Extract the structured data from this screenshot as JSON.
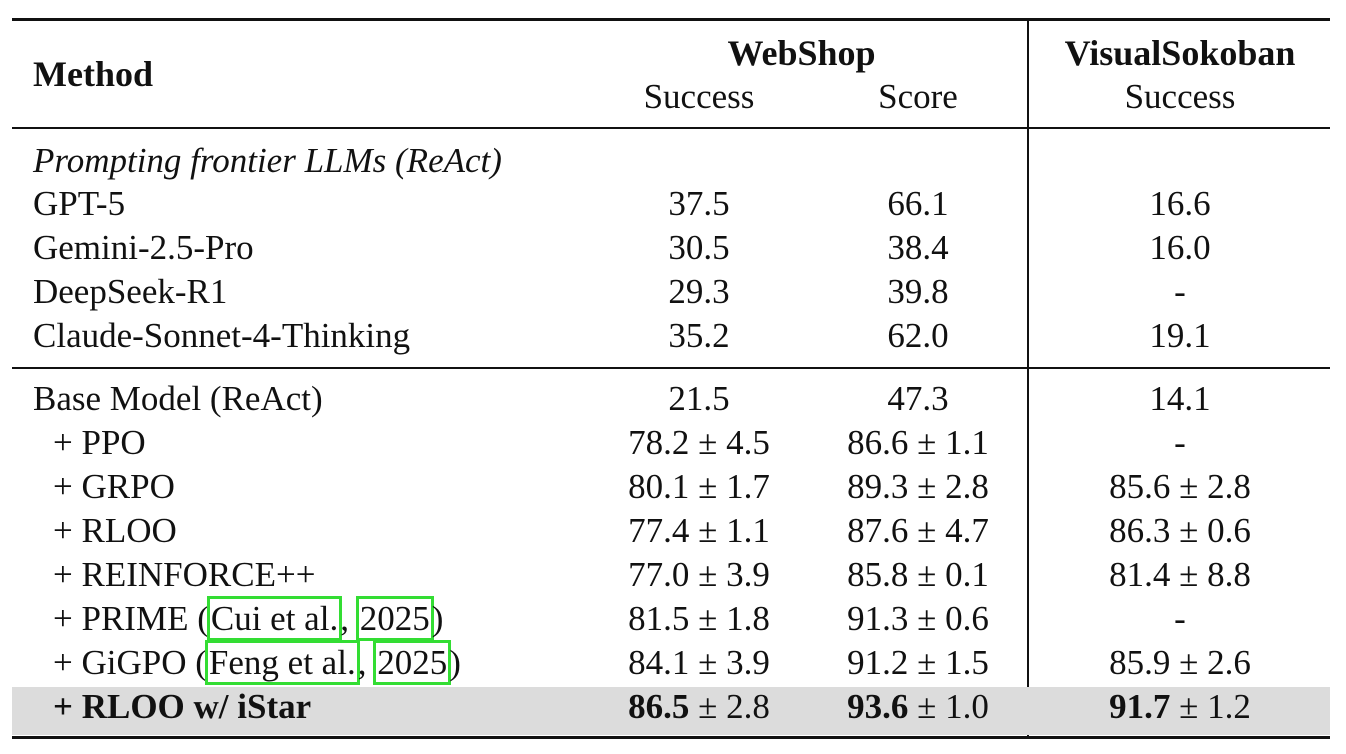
{
  "table": {
    "header": {
      "method": "Method",
      "webshop": "WebShop",
      "visualsokoban": "VisualSokoban",
      "ws_success": "Success",
      "ws_score": "Score",
      "vs_success": "Success"
    },
    "section1_title": "Prompting frontier LLMs (ReAct)",
    "rows": [
      {
        "method": "GPT-5",
        "ws_success": "37.5",
        "ws_score": "66.1",
        "vs_success": "16.6"
      },
      {
        "method": "Gemini-2.5-Pro",
        "ws_success": "30.5",
        "ws_score": "38.4",
        "vs_success": "16.0"
      },
      {
        "method": "DeepSeek-R1",
        "ws_success": "29.3",
        "ws_score": "39.8",
        "vs_success": "-"
      },
      {
        "method": "Claude-Sonnet-4-Thinking",
        "ws_success": "35.2",
        "ws_score": "62.0",
        "vs_success": "19.1"
      },
      {
        "method": "Base Model (ReAct)",
        "ws_success": "21.5",
        "ws_score": "47.3",
        "vs_success": "14.1"
      },
      {
        "method": "+ PPO",
        "ws_success": "78.2 ± 4.5",
        "ws_score": "86.6 ± 1.1",
        "vs_success": "-"
      },
      {
        "method": "+ GRPO",
        "ws_success": "80.1 ± 1.7",
        "ws_score": "89.3 ± 2.8",
        "vs_success": "85.6 ± 2.8"
      },
      {
        "method": "+ RLOO",
        "ws_success": "77.4 ± 1.1",
        "ws_score": "87.6 ± 4.7",
        "vs_success": "86.3 ± 0.6"
      },
      {
        "method": "+ REINFORCE++",
        "ws_success": "77.0 ± 3.9",
        "ws_score": "85.8 ± 0.1",
        "vs_success": "81.4 ± 8.8"
      },
      {
        "method_prefix": "+ PRIME (",
        "cite_author": "Cui et al.",
        "cite_sep": ", ",
        "cite_year": "2025",
        "method_suffix": ")",
        "ws_success": "81.5 ± 1.8",
        "ws_score": "91.3 ± 0.6",
        "vs_success": "-"
      },
      {
        "method_prefix": "+ GiGPO (",
        "cite_author": "Feng et al.",
        "cite_sep": ", ",
        "cite_year": "2025",
        "method_suffix": ")",
        "ws_success": "84.1 ± 3.9",
        "ws_score": "91.2 ± 1.5",
        "vs_success": "85.9 ± 2.6"
      }
    ],
    "highlight_row": {
      "method": "+ RLOO w/ iStar",
      "ws_success_main": "86.5",
      "ws_success_err": " ± 2.8",
      "ws_score_main": "93.6",
      "ws_score_err": " ± 1.0",
      "vs_success_main": "91.7",
      "vs_success_err": " ± 1.2"
    }
  }
}
